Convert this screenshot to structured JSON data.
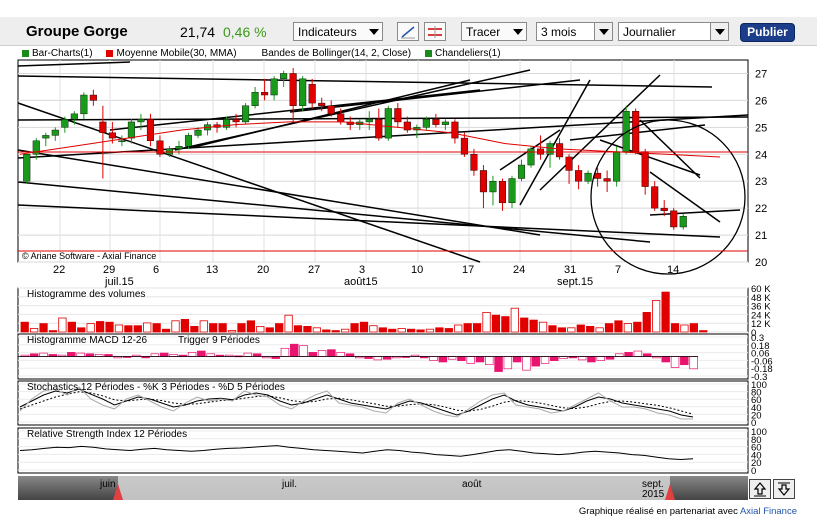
{
  "toolbar": {
    "title": "Groupe Gorge",
    "price": "21,74",
    "change": "0,46 %",
    "indicators_label": "Indicateurs",
    "draw_label": "Tracer",
    "period_value": "3 mois",
    "interval_value": "Journalier",
    "publish_label": "Publier",
    "tool_icons": [
      "trend-line-icon",
      "horizontal-lines-icon"
    ]
  },
  "legend": {
    "items": [
      {
        "label": "Bar-Charts(1)",
        "color": "#1a8a1a"
      },
      {
        "label": "Moyenne Mobile(30, MMA)",
        "color": "#e00000"
      },
      {
        "label": "Bandes de Bollinger(14, 2, Close)",
        "color": ""
      },
      {
        "label": "Chandeliers(1)",
        "color": "#1a8a1a"
      }
    ]
  },
  "copyright": "© Ariane Software - Axial Finance",
  "x_axis": {
    "days": [
      "22",
      "29",
      "6",
      "13",
      "20",
      "27",
      "3",
      "10",
      "17",
      "24",
      "31",
      "7",
      "14"
    ],
    "months": [
      "juil.15",
      "août15",
      "sept.15"
    ]
  },
  "panels": {
    "volume": {
      "title": "Histogramme des volumes",
      "ticks": [
        "60 K",
        "48 K",
        "36 K",
        "24 K",
        "12 K",
        "0"
      ]
    },
    "macd": {
      "title": "Histogramme MACD 12-26",
      "trigger": "Trigger 9 Périodes",
      "ticks": [
        "0.3",
        "0.18",
        "0.06",
        "-0.06",
        "-0.18",
        "-0.3"
      ]
    },
    "stoch": {
      "title": "Stochastics 12 Périodes  -  %K 3 Périodes  -  %D 5 Périodes",
      "ticks": [
        "100",
        "80",
        "60",
        "40",
        "20",
        "0"
      ]
    },
    "rsi": {
      "title": "Relative Strength Index 12 Périodes",
      "ticks": [
        "100",
        "80",
        "60",
        "40",
        "20",
        "0"
      ]
    }
  },
  "navigator": {
    "months": [
      "juin",
      "juil.",
      "août",
      "sept.\n2015"
    ]
  },
  "footer": {
    "credit_text": "Graphique réalisé en partenariat avec",
    "credit_link": "Axial Finance"
  },
  "colors": {
    "up": "#1a9a1a",
    "down": "#e00000",
    "ma": "#e00000",
    "toolbar_bg": "#eeeeee",
    "navigator_bg": "#555555",
    "publish_bg": "#1c3d8a"
  },
  "chart_data": [
    {
      "type": "candlestick",
      "title": "Groupe Gorge",
      "ylim": [
        20,
        27.5
      ],
      "y_ticks": [
        20,
        21,
        22,
        23,
        24,
        25,
        26,
        27
      ],
      "x_labels": [
        "22",
        "29",
        "6",
        "13",
        "20",
        "27",
        "3",
        "10",
        "17",
        "24",
        "31",
        "7",
        "14"
      ],
      "candles": [
        [
          23.0,
          24.0,
          22.9,
          24.0
        ],
        [
          24.0,
          24.6,
          23.8,
          24.5
        ],
        [
          24.6,
          24.8,
          24.3,
          24.7
        ],
        [
          24.7,
          25.0,
          24.5,
          24.9
        ],
        [
          25.0,
          25.4,
          24.8,
          25.3
        ],
        [
          25.3,
          25.6,
          25.1,
          25.5
        ],
        [
          25.5,
          26.3,
          25.3,
          26.2
        ],
        [
          26.2,
          26.4,
          25.8,
          26.0
        ],
        [
          25.2,
          25.8,
          23.1,
          24.8
        ],
        [
          24.8,
          25.2,
          24.4,
          24.6
        ],
        [
          24.5,
          24.7,
          24.3,
          24.5
        ],
        [
          24.6,
          25.3,
          24.4,
          25.2
        ],
        [
          25.2,
          25.5,
          24.9,
          25.3
        ],
        [
          25.3,
          25.5,
          24.3,
          24.5
        ],
        [
          24.5,
          24.7,
          23.9,
          24.0
        ],
        [
          24.0,
          24.3,
          23.9,
          24.2
        ],
        [
          24.2,
          24.5,
          24.0,
          24.3
        ],
        [
          24.3,
          24.8,
          24.2,
          24.7
        ],
        [
          24.7,
          25.0,
          24.6,
          24.9
        ],
        [
          24.9,
          25.2,
          24.7,
          25.1
        ],
        [
          25.1,
          25.2,
          24.8,
          25.0
        ],
        [
          25.0,
          25.4,
          24.9,
          25.3
        ],
        [
          25.3,
          25.5,
          25.0,
          25.2
        ],
        [
          25.2,
          25.9,
          25.1,
          25.8
        ],
        [
          25.8,
          26.5,
          25.7,
          26.3
        ],
        [
          26.3,
          26.8,
          26.0,
          26.2
        ],
        [
          26.2,
          26.9,
          26.0,
          26.8
        ],
        [
          26.8,
          27.1,
          26.5,
          27.0
        ],
        [
          27.0,
          27.2,
          25.2,
          25.8
        ],
        [
          25.8,
          26.9,
          25.6,
          26.8
        ],
        [
          26.6,
          26.8,
          25.7,
          25.9
        ],
        [
          25.9,
          26.1,
          25.6,
          25.8
        ],
        [
          25.8,
          26.0,
          25.4,
          25.5
        ],
        [
          25.5,
          25.7,
          25.1,
          25.2
        ],
        [
          25.2,
          25.4,
          24.9,
          25.1
        ],
        [
          25.1,
          25.3,
          24.9,
          25.2
        ],
        [
          25.2,
          25.6,
          24.9,
          25.3
        ],
        [
          25.3,
          25.7,
          24.5,
          24.6
        ],
        [
          24.6,
          25.8,
          24.5,
          25.7
        ],
        [
          25.7,
          25.9,
          25.0,
          25.2
        ],
        [
          25.2,
          25.4,
          24.8,
          24.9
        ],
        [
          24.9,
          25.1,
          24.6,
          25.0
        ],
        [
          25.0,
          25.4,
          24.9,
          25.3
        ],
        [
          25.3,
          25.5,
          25.0,
          25.1
        ],
        [
          25.1,
          25.3,
          24.9,
          25.2
        ],
        [
          25.2,
          25.3,
          24.4,
          24.6
        ],
        [
          24.6,
          24.8,
          23.9,
          24.0
        ],
        [
          24.0,
          24.2,
          23.2,
          23.4
        ],
        [
          23.4,
          23.6,
          22.0,
          22.6
        ],
        [
          22.6,
          23.2,
          22.1,
          23.0
        ],
        [
          23.0,
          23.1,
          21.9,
          22.2
        ],
        [
          22.2,
          23.2,
          22.0,
          23.1
        ],
        [
          23.1,
          23.8,
          23.0,
          23.6
        ],
        [
          23.6,
          24.3,
          23.5,
          24.2
        ],
        [
          24.2,
          24.7,
          23.8,
          24.0
        ],
        [
          24.0,
          24.5,
          23.5,
          24.4
        ],
        [
          24.4,
          24.6,
          23.8,
          23.9
        ],
        [
          23.9,
          24.0,
          22.9,
          23.4
        ],
        [
          23.4,
          23.6,
          22.7,
          23.0
        ],
        [
          23.0,
          23.4,
          22.9,
          23.3
        ],
        [
          23.3,
          23.5,
          22.8,
          23.1
        ],
        [
          23.1,
          23.4,
          22.6,
          23.0
        ],
        [
          23.0,
          24.3,
          22.8,
          24.1
        ],
        [
          24.1,
          25.8,
          24.0,
          25.6
        ],
        [
          25.6,
          25.7,
          24.0,
          24.1
        ],
        [
          24.1,
          24.2,
          22.5,
          22.8
        ],
        [
          22.8,
          23.0,
          21.9,
          22.0
        ],
        [
          22.0,
          22.3,
          21.7,
          21.9
        ],
        [
          21.9,
          22.0,
          21.2,
          21.3
        ],
        [
          21.3,
          21.8,
          21.2,
          21.7
        ]
      ],
      "moving_average_30": [
        24.0,
        24.3,
        24.6,
        24.9,
        25.1,
        25.2,
        25.2,
        25.0,
        24.8,
        24.4,
        24.2,
        24.1,
        24.0,
        23.9
      ]
    },
    {
      "type": "bar",
      "title": "Histogramme des volumes",
      "ylim": [
        0,
        60000
      ],
      "values": [
        14000,
        5000,
        12000,
        2000,
        20000,
        14000,
        6000,
        12000,
        15000,
        14000,
        10000,
        9000,
        9000,
        13000,
        12000,
        4000,
        16000,
        18000,
        8000,
        16000,
        12000,
        12000,
        2000,
        12000,
        16000,
        8000,
        6000,
        12000,
        24000,
        9000,
        8000,
        6000,
        3000,
        2000,
        4000,
        12000,
        14000,
        9000,
        6000,
        4000,
        5000,
        4000,
        3000,
        4000,
        6000,
        5000,
        10000,
        12000,
        12000,
        28000,
        24000,
        22000,
        34000,
        20000,
        17000,
        14000,
        9000,
        6000,
        6000,
        10000,
        8000,
        6000,
        12000,
        16000,
        12000,
        14000,
        28000,
        45000,
        57000,
        12000,
        10000,
        12000,
        2000
      ]
    },
    {
      "type": "bar",
      "title": "Histogramme MACD 12-26",
      "ylim": [
        -0.3,
        0.3
      ],
      "values": [
        0.02,
        0.04,
        0.05,
        0.03,
        0.02,
        0.06,
        0.05,
        0.04,
        0.03,
        0.03,
        -0.02,
        -0.01,
        0.02,
        -0.02,
        0.04,
        0.05,
        0.03,
        0.02,
        0.06,
        0.08,
        0.04,
        0.02,
        0.02,
        0.01,
        0.05,
        0.04,
        -0.02,
        -0.03,
        0.12,
        0.18,
        0.16,
        0.06,
        0.09,
        0.1,
        0.06,
        0.04,
        -0.02,
        -0.03,
        -0.05,
        -0.04,
        -0.02,
        -0.01,
        0.02,
        -0.02,
        -0.06,
        -0.08,
        -0.04,
        -0.06,
        -0.1,
        -0.08,
        -0.12,
        -0.22,
        -0.18,
        -0.08,
        -0.2,
        -0.14,
        -0.1,
        -0.06,
        -0.03,
        -0.02,
        -0.05,
        -0.08,
        -0.06,
        -0.04,
        0.04,
        0.06,
        0.08,
        0.04,
        -0.02,
        -0.08,
        -0.16,
        -0.12,
        -0.18
      ]
    },
    {
      "type": "line",
      "title": "Stochastics",
      "ylim": [
        0,
        100
      ],
      "series": [
        {
          "values": [
            40,
            55,
            70,
            80,
            75,
            85,
            72,
            60,
            45,
            55,
            65,
            60,
            50,
            40,
            45,
            55,
            60,
            62,
            58,
            70,
            75,
            70,
            55,
            45,
            50,
            60,
            70,
            60,
            50,
            45,
            40,
            35,
            45,
            55,
            50,
            40,
            30,
            20,
            30,
            45,
            60,
            70,
            55,
            45,
            40,
            35,
            30,
            40,
            55,
            65,
            60,
            50,
            45,
            40,
            35,
            30,
            20,
            15
          ]
        },
        {
          "values": [
            35,
            45,
            55,
            65,
            72,
            78,
            75,
            68,
            58,
            55,
            58,
            60,
            56,
            50,
            47,
            48,
            52,
            56,
            58,
            62,
            66,
            68,
            63,
            56,
            52,
            54,
            60,
            62,
            58,
            53,
            48,
            42,
            42,
            46,
            48,
            46,
            40,
            32,
            30,
            34,
            42,
            52,
            56,
            54,
            50,
            44,
            38,
            36,
            40,
            48,
            54,
            55,
            52,
            48,
            44,
            38,
            30,
            22
          ]
        },
        {
          "values": [
            30,
            60,
            80,
            85,
            70,
            90,
            60,
            45,
            35,
            60,
            70,
            55,
            40,
            30,
            50,
            65,
            55,
            60,
            55,
            80,
            70,
            65,
            45,
            35,
            55,
            70,
            80,
            50,
            45,
            40,
            30,
            25,
            50,
            60,
            45,
            30,
            20,
            15,
            35,
            55,
            70,
            75,
            45,
            40,
            35,
            25,
            30,
            45,
            60,
            75,
            55,
            40,
            40,
            35,
            25,
            20,
            10,
            10
          ]
        }
      ]
    },
    {
      "type": "line",
      "title": "Relative Strength Index 12 Périodes",
      "ylim": [
        0,
        100
      ],
      "series": [
        {
          "values": [
            50,
            52,
            55,
            58,
            57,
            60,
            58,
            54,
            52,
            50,
            53,
            55,
            52,
            50,
            48,
            50,
            53,
            55,
            56,
            58,
            60,
            62,
            58,
            55,
            52,
            50,
            48,
            46,
            44,
            48,
            52,
            50,
            46,
            44,
            40,
            38,
            36,
            40,
            45,
            50,
            52,
            48,
            44,
            42,
            40,
            42,
            46,
            48,
            46,
            44,
            40,
            38,
            34,
            30,
            28,
            30
          ]
        }
      ]
    }
  ]
}
